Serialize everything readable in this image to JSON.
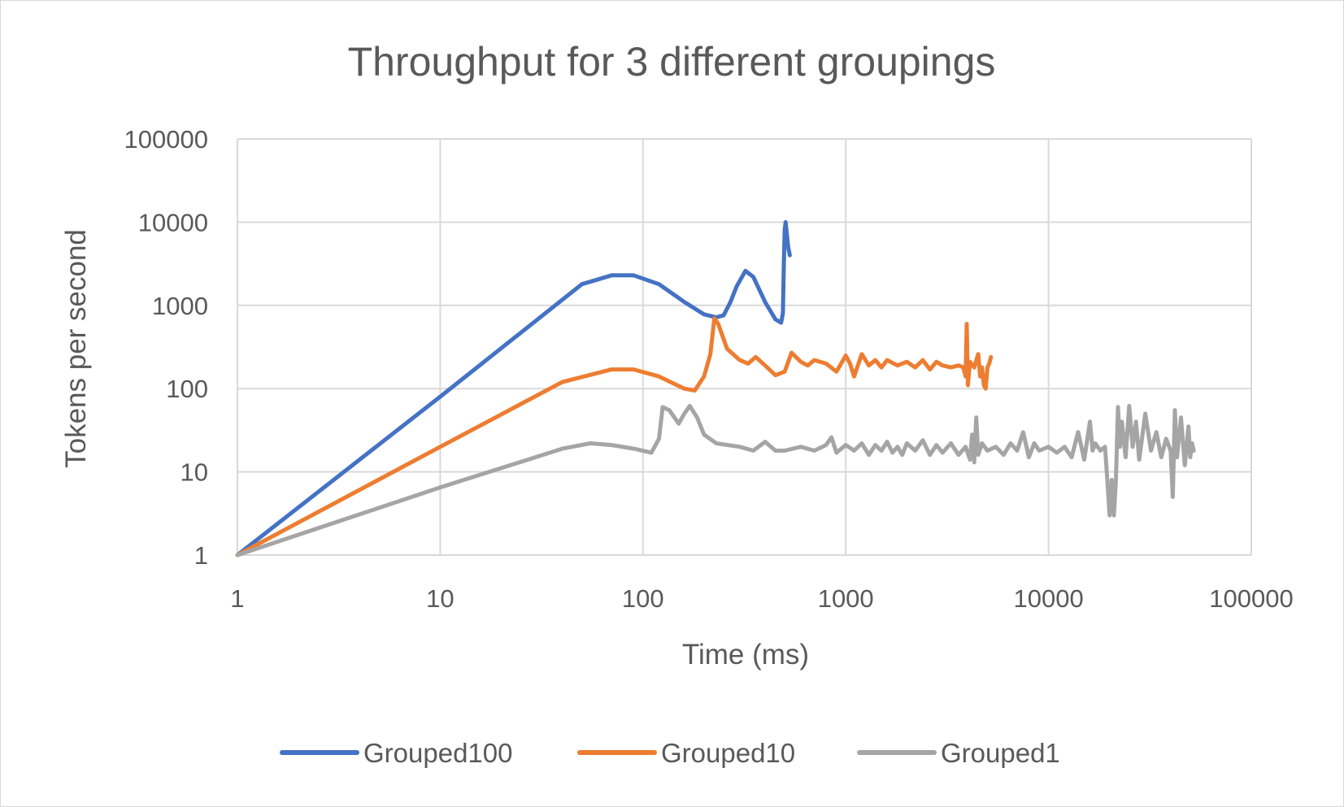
{
  "chart_data": {
    "type": "line",
    "title": "Throughput for 3 different groupings",
    "xlabel": "Time (ms)",
    "ylabel": "Tokens per second",
    "x_scale": "log",
    "y_scale": "log",
    "xlim": [
      1,
      100000
    ],
    "ylim": [
      1,
      100000
    ],
    "x_ticks": [
      "1",
      "10",
      "100",
      "1000",
      "10000",
      "100000"
    ],
    "y_ticks": [
      "1",
      "10",
      "100",
      "1000",
      "10000",
      "100000"
    ],
    "grid": true,
    "legend_position": "bottom",
    "series": [
      {
        "name": "Grouped100",
        "color": "#4472c4",
        "points": [
          [
            1,
            1
          ],
          [
            10,
            80
          ],
          [
            50,
            1800
          ],
          [
            70,
            2300
          ],
          [
            90,
            2300
          ],
          [
            120,
            1800
          ],
          [
            160,
            1100
          ],
          [
            200,
            780
          ],
          [
            230,
            720
          ],
          [
            250,
            760
          ],
          [
            270,
            1100
          ],
          [
            290,
            1700
          ],
          [
            320,
            2600
          ],
          [
            350,
            2200
          ],
          [
            400,
            1100
          ],
          [
            450,
            680
          ],
          [
            480,
            620
          ],
          [
            490,
            800
          ],
          [
            495,
            3000
          ],
          [
            500,
            8000
          ],
          [
            505,
            10000
          ],
          [
            510,
            8000
          ],
          [
            520,
            5000
          ],
          [
            530,
            4000
          ]
        ]
      },
      {
        "name": "Grouped10",
        "color": "#ed7d31",
        "points": [
          [
            1,
            1
          ],
          [
            10,
            20
          ],
          [
            40,
            120
          ],
          [
            70,
            170
          ],
          [
            90,
            170
          ],
          [
            120,
            140
          ],
          [
            160,
            100
          ],
          [
            180,
            95
          ],
          [
            200,
            140
          ],
          [
            215,
            260
          ],
          [
            225,
            700
          ],
          [
            235,
            600
          ],
          [
            260,
            300
          ],
          [
            300,
            220
          ],
          [
            330,
            200
          ],
          [
            360,
            240
          ],
          [
            400,
            190
          ],
          [
            450,
            145
          ],
          [
            500,
            160
          ],
          [
            540,
            270
          ],
          [
            600,
            210
          ],
          [
            650,
            190
          ],
          [
            700,
            220
          ],
          [
            800,
            200
          ],
          [
            900,
            160
          ],
          [
            1000,
            250
          ],
          [
            1050,
            200
          ],
          [
            1100,
            140
          ],
          [
            1200,
            260
          ],
          [
            1300,
            190
          ],
          [
            1400,
            220
          ],
          [
            1500,
            180
          ],
          [
            1600,
            220
          ],
          [
            1800,
            190
          ],
          [
            2000,
            210
          ],
          [
            2200,
            180
          ],
          [
            2400,
            220
          ],
          [
            2600,
            170
          ],
          [
            2800,
            210
          ],
          [
            3000,
            190
          ],
          [
            3300,
            180
          ],
          [
            3600,
            190
          ],
          [
            3800,
            180
          ],
          [
            3900,
            140
          ],
          [
            3950,
            600
          ],
          [
            4000,
            110
          ],
          [
            4100,
            210
          ],
          [
            4300,
            180
          ],
          [
            4500,
            260
          ],
          [
            4600,
            140
          ],
          [
            4700,
            180
          ],
          [
            4800,
            110
          ],
          [
            4900,
            100
          ],
          [
            5000,
            180
          ],
          [
            5100,
            200
          ],
          [
            5200,
            240
          ]
        ]
      },
      {
        "name": "Grouped1",
        "color": "#a5a5a5",
        "points": [
          [
            1,
            1
          ],
          [
            10,
            6.5
          ],
          [
            40,
            19
          ],
          [
            55,
            22
          ],
          [
            70,
            21
          ],
          [
            90,
            19
          ],
          [
            110,
            17
          ],
          [
            120,
            25
          ],
          [
            125,
            60
          ],
          [
            135,
            55
          ],
          [
            150,
            38
          ],
          [
            160,
            50
          ],
          [
            170,
            62
          ],
          [
            185,
            45
          ],
          [
            200,
            28
          ],
          [
            230,
            22
          ],
          [
            300,
            20
          ],
          [
            350,
            18
          ],
          [
            400,
            23
          ],
          [
            450,
            18
          ],
          [
            500,
            18
          ],
          [
            600,
            20
          ],
          [
            700,
            18
          ],
          [
            800,
            21
          ],
          [
            850,
            26
          ],
          [
            900,
            17
          ],
          [
            1000,
            21
          ],
          [
            1100,
            18
          ],
          [
            1200,
            22
          ],
          [
            1300,
            16
          ],
          [
            1400,
            21
          ],
          [
            1500,
            18
          ],
          [
            1600,
            23
          ],
          [
            1700,
            17
          ],
          [
            1800,
            20
          ],
          [
            1900,
            16
          ],
          [
            2000,
            22
          ],
          [
            2200,
            18
          ],
          [
            2400,
            24
          ],
          [
            2600,
            16
          ],
          [
            2800,
            21
          ],
          [
            3000,
            17
          ],
          [
            3300,
            22
          ],
          [
            3600,
            16
          ],
          [
            3900,
            20
          ],
          [
            4100,
            14
          ],
          [
            4200,
            28
          ],
          [
            4300,
            13
          ],
          [
            4400,
            45
          ],
          [
            4500,
            16
          ],
          [
            4700,
            22
          ],
          [
            5000,
            18
          ],
          [
            5500,
            20
          ],
          [
            6000,
            16
          ],
          [
            6500,
            22
          ],
          [
            7000,
            18
          ],
          [
            7500,
            30
          ],
          [
            8000,
            15
          ],
          [
            8500,
            22
          ],
          [
            9000,
            18
          ],
          [
            10000,
            20
          ],
          [
            11000,
            17
          ],
          [
            12000,
            20
          ],
          [
            13000,
            15
          ],
          [
            14000,
            30
          ],
          [
            15000,
            14
          ],
          [
            16000,
            40
          ],
          [
            16500,
            18
          ],
          [
            17000,
            22
          ],
          [
            18000,
            18
          ],
          [
            19000,
            20
          ],
          [
            19500,
            8
          ],
          [
            20000,
            3
          ],
          [
            20500,
            8
          ],
          [
            21000,
            3
          ],
          [
            21500,
            8
          ],
          [
            22000,
            60
          ],
          [
            22500,
            20
          ],
          [
            23000,
            40
          ],
          [
            24000,
            15
          ],
          [
            25000,
            62
          ],
          [
            26000,
            20
          ],
          [
            27000,
            40
          ],
          [
            28000,
            14
          ],
          [
            30000,
            50
          ],
          [
            32000,
            18
          ],
          [
            34000,
            30
          ],
          [
            36000,
            15
          ],
          [
            38000,
            25
          ],
          [
            40000,
            18
          ],
          [
            41000,
            5
          ],
          [
            42000,
            55
          ],
          [
            43000,
            15
          ],
          [
            45000,
            45
          ],
          [
            47000,
            12
          ],
          [
            49000,
            35
          ],
          [
            50000,
            15
          ],
          [
            51000,
            22
          ],
          [
            52000,
            18
          ]
        ]
      }
    ]
  }
}
